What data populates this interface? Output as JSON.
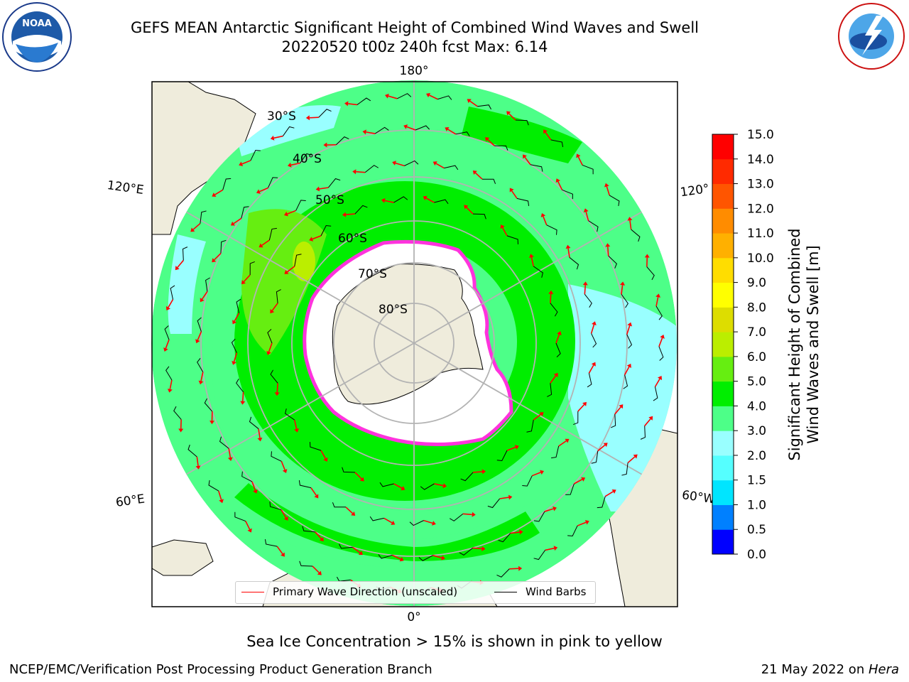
{
  "header": {
    "title_line1": "GEFS MEAN Antarctic Significant Height of Combined Wind Waves and Swell",
    "title_line2": "20220520 t00z 240h fcst   Max: 6.14"
  },
  "map": {
    "lon_labels": {
      "top": "180°",
      "bottom": "0°",
      "left_upper": "120°E",
      "left_lower": "60°E",
      "right_upper": "120°",
      "right_lower": "60°W"
    },
    "lat_labels": [
      "30°S",
      "40°S",
      "50°S",
      "60°S",
      "70°S",
      "80°S"
    ],
    "colors": {
      "land": "#efecdc",
      "ice": "#ffffff",
      "ice_edge": "#ff33dd",
      "grid": "#b3b3b3"
    }
  },
  "legend": {
    "wave_direction_label": "Primary Wave Direction (unscaled)",
    "wind_barbs_label": "Wind Barbs",
    "wave_color": "#ff0000",
    "barb_color": "#000000"
  },
  "colorbar": {
    "title_line1": "Significant Height of Combined",
    "title_line2": "Wind Waves and Swell [m]",
    "ticks": [
      "0.0",
      "0.5",
      "1.0",
      "1.5",
      "2.0",
      "3.0",
      "4.0",
      "5.0",
      "6.0",
      "7.0",
      "8.0",
      "9.0",
      "10.0",
      "11.0",
      "12.0",
      "13.0",
      "14.0",
      "15.0"
    ],
    "colors": [
      "#0000ff",
      "#0080ff",
      "#00e5ff",
      "#55ffff",
      "#99ffff",
      "#4dff88",
      "#00ee00",
      "#66ee11",
      "#bbee00",
      "#dddd00",
      "#ffff00",
      "#ffdd00",
      "#ffb000",
      "#ff8c00",
      "#ff5500",
      "#ff2a00",
      "#ff0000"
    ]
  },
  "footer": {
    "subtitle": "Sea Ice Concentration > 15% is shown in pink to yellow",
    "left": "NCEP/EMC/Verification Post Processing Product Generation Branch",
    "right_date": "21 May 2022 on ",
    "right_host": "Hera"
  }
}
